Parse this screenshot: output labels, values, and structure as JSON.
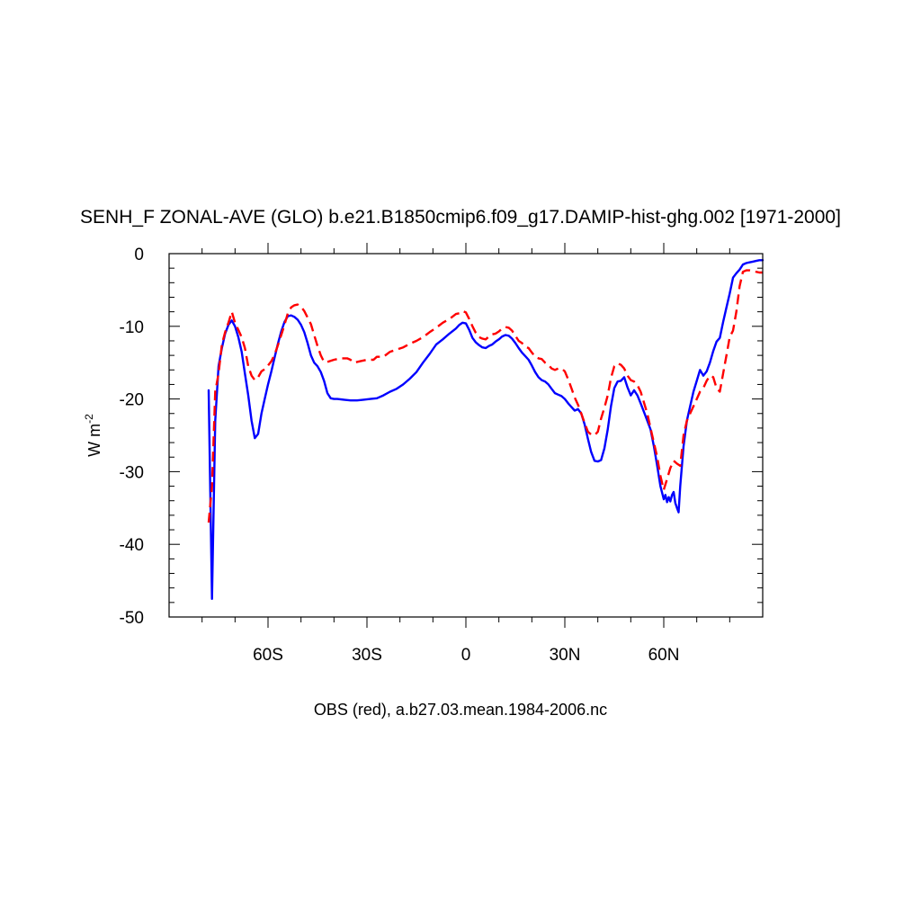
{
  "chart_data": {
    "type": "line",
    "title": "SENH_F ZONAL-AVE (GLO) b.e21.B1850cmip6.f09_g17.DAMIP-hist-ghg.002 [1971-2000]",
    "xlabel": "OBS (red), a.b27.03.mean.1984-2006.nc",
    "ylabel": "W m",
    "ylabel_sup": "-2",
    "xlim": [
      -90,
      90
    ],
    "ylim": [
      -50,
      0
    ],
    "x_ticks": [
      {
        "value": -60,
        "label": "60S"
      },
      {
        "value": -30,
        "label": "30S"
      },
      {
        "value": 0,
        "label": "0"
      },
      {
        "value": 30,
        "label": "30N"
      },
      {
        "value": 60,
        "label": "60N"
      }
    ],
    "y_ticks": [
      {
        "value": 0,
        "label": "0"
      },
      {
        "value": -10,
        "label": "-10"
      },
      {
        "value": -20,
        "label": "-20"
      },
      {
        "value": -30,
        "label": "-30"
      },
      {
        "value": -40,
        "label": "-40"
      },
      {
        "value": -50,
        "label": "-50"
      }
    ],
    "grid": false,
    "series": [
      {
        "color": "#0000ff",
        "dash": "solid",
        "points": [
          [
            -78,
            -18.8
          ],
          [
            -77,
            -47.5
          ],
          [
            -76,
            -23
          ],
          [
            -75,
            -15.5
          ],
          [
            -74,
            -13
          ],
          [
            -73,
            -11
          ],
          [
            -72,
            -9.8
          ],
          [
            -71,
            -9.2
          ],
          [
            -70,
            -10
          ],
          [
            -69,
            -11.5
          ],
          [
            -68,
            -13.5
          ],
          [
            -67,
            -16.5
          ],
          [
            -66,
            -19.5
          ],
          [
            -65,
            -23
          ],
          [
            -64,
            -25.4
          ],
          [
            -63,
            -24.8
          ],
          [
            -62,
            -22
          ],
          [
            -61,
            -20
          ],
          [
            -60,
            -18
          ],
          [
            -59,
            -16.2
          ],
          [
            -58,
            -14.3
          ],
          [
            -57,
            -12.4
          ],
          [
            -56,
            -10.7
          ],
          [
            -55,
            -9.4
          ],
          [
            -54,
            -8.6
          ],
          [
            -53,
            -8.5
          ],
          [
            -52,
            -8.7
          ],
          [
            -51,
            -9.1
          ],
          [
            -50,
            -9.8
          ],
          [
            -49,
            -10.8
          ],
          [
            -48,
            -12.3
          ],
          [
            -47,
            -14
          ],
          [
            -46,
            -15
          ],
          [
            -45,
            -15.5
          ],
          [
            -44,
            -16.3
          ],
          [
            -43,
            -17.5
          ],
          [
            -42,
            -19.2
          ],
          [
            -41,
            -19.9
          ],
          [
            -40,
            -20
          ],
          [
            -39,
            -20
          ],
          [
            -37,
            -20.1
          ],
          [
            -35,
            -20.2
          ],
          [
            -33,
            -20.2
          ],
          [
            -31,
            -20.1
          ],
          [
            -29,
            -20
          ],
          [
            -27,
            -19.9
          ],
          [
            -25,
            -19.5
          ],
          [
            -23,
            -19
          ],
          [
            -21,
            -18.6
          ],
          [
            -19,
            -18
          ],
          [
            -17,
            -17.2
          ],
          [
            -15,
            -16.3
          ],
          [
            -13,
            -15
          ],
          [
            -11,
            -13.8
          ],
          [
            -9,
            -12.5
          ],
          [
            -7,
            -11.8
          ],
          [
            -5,
            -11
          ],
          [
            -3,
            -10.3
          ],
          [
            -2,
            -9.8
          ],
          [
            -1,
            -9.5
          ],
          [
            0,
            -9.6
          ],
          [
            1,
            -10.5
          ],
          [
            2,
            -11.6
          ],
          [
            3,
            -12.2
          ],
          [
            4,
            -12.6
          ],
          [
            5,
            -12.9
          ],
          [
            6,
            -13
          ],
          [
            7,
            -12.7
          ],
          [
            8,
            -12.5
          ],
          [
            9,
            -12.1
          ],
          [
            10,
            -11.8
          ],
          [
            11,
            -11.4
          ],
          [
            12,
            -11.2
          ],
          [
            13,
            -11.3
          ],
          [
            14,
            -11.7
          ],
          [
            15,
            -12.3
          ],
          [
            16,
            -13
          ],
          [
            17,
            -13.6
          ],
          [
            18,
            -14.1
          ],
          [
            19,
            -14.6
          ],
          [
            20,
            -15.4
          ],
          [
            21,
            -16.3
          ],
          [
            22,
            -17
          ],
          [
            23,
            -17.4
          ],
          [
            24,
            -17.6
          ],
          [
            25,
            -18
          ],
          [
            26,
            -18.6
          ],
          [
            27,
            -19.2
          ],
          [
            28,
            -19.4
          ],
          [
            29,
            -19.6
          ],
          [
            30,
            -20
          ],
          [
            31,
            -20.6
          ],
          [
            32,
            -21.1
          ],
          [
            33,
            -21.6
          ],
          [
            34,
            -21.4
          ],
          [
            35,
            -22
          ],
          [
            36,
            -23.5
          ],
          [
            37,
            -25.5
          ],
          [
            38,
            -27.3
          ],
          [
            39,
            -28.5
          ],
          [
            40,
            -28.6
          ],
          [
            41,
            -28.4
          ],
          [
            42,
            -26.8
          ],
          [
            43,
            -24.2
          ],
          [
            44,
            -21
          ],
          [
            45,
            -18.5
          ],
          [
            46,
            -17.6
          ],
          [
            47,
            -17.5
          ],
          [
            48,
            -17
          ],
          [
            49,
            -18.4
          ],
          [
            50,
            -19.5
          ],
          [
            51,
            -18.8
          ],
          [
            52,
            -19.5
          ],
          [
            53,
            -20.6
          ],
          [
            54,
            -21.8
          ],
          [
            55,
            -23
          ],
          [
            56,
            -24.2
          ],
          [
            57,
            -26.5
          ],
          [
            58,
            -29.2
          ],
          [
            59,
            -32
          ],
          [
            60,
            -33.8
          ],
          [
            60.5,
            -33.2
          ],
          [
            61,
            -34.2
          ],
          [
            61.5,
            -33.5
          ],
          [
            62,
            -34.1
          ],
          [
            62.5,
            -33.2
          ],
          [
            63,
            -32.8
          ],
          [
            63.5,
            -34.3
          ],
          [
            64,
            -35
          ],
          [
            64.5,
            -35.6
          ],
          [
            65,
            -32
          ],
          [
            66,
            -26.5
          ],
          [
            67,
            -23
          ],
          [
            68,
            -21
          ],
          [
            69,
            -19
          ],
          [
            70,
            -17.5
          ],
          [
            71,
            -16
          ],
          [
            72,
            -16.8
          ],
          [
            73,
            -16.2
          ],
          [
            74,
            -15
          ],
          [
            75,
            -13.4
          ],
          [
            76,
            -12.1
          ],
          [
            77,
            -11.6
          ],
          [
            78,
            -9.4
          ],
          [
            79,
            -7.4
          ],
          [
            80,
            -5.5
          ],
          [
            81,
            -3.3
          ],
          [
            82,
            -2.7
          ],
          [
            83,
            -2.2
          ],
          [
            84,
            -1.5
          ],
          [
            85,
            -1.3
          ],
          [
            86,
            -1.2
          ],
          [
            87,
            -1.1
          ],
          [
            88,
            -1
          ],
          [
            89,
            -0.9
          ],
          [
            90,
            -0.9
          ]
        ]
      },
      {
        "color": "#ff0000",
        "dash": "dashed",
        "points": [
          [
            -78,
            -37
          ],
          [
            -77,
            -32
          ],
          [
            -76,
            -19
          ],
          [
            -75,
            -16.5
          ],
          [
            -74,
            -12.5
          ],
          [
            -73,
            -10.8
          ],
          [
            -72,
            -9.5
          ],
          [
            -71,
            -8
          ],
          [
            -70,
            -9.5
          ],
          [
            -69,
            -10.5
          ],
          [
            -68,
            -11.5
          ],
          [
            -67,
            -13
          ],
          [
            -66,
            -15.5
          ],
          [
            -65,
            -16.8
          ],
          [
            -64,
            -17.4
          ],
          [
            -63,
            -17
          ],
          [
            -62,
            -16.2
          ],
          [
            -61,
            -15.9
          ],
          [
            -60,
            -15.4
          ],
          [
            -59,
            -14.8
          ],
          [
            -58,
            -13.9
          ],
          [
            -57,
            -12.6
          ],
          [
            -56,
            -11.2
          ],
          [
            -55,
            -9.8
          ],
          [
            -54,
            -8.2
          ],
          [
            -53,
            -7.4
          ],
          [
            -52,
            -7.1
          ],
          [
            -51,
            -7
          ],
          [
            -50,
            -7.3
          ],
          [
            -49,
            -7.9
          ],
          [
            -48,
            -8.8
          ],
          [
            -47,
            -9.7
          ],
          [
            -46,
            -11.2
          ],
          [
            -45,
            -12.7
          ],
          [
            -44,
            -14
          ],
          [
            -43,
            -14.9
          ],
          [
            -42,
            -14.9
          ],
          [
            -40,
            -14.6
          ],
          [
            -38,
            -14.4
          ],
          [
            -36,
            -14.4
          ],
          [
            -35,
            -14.6
          ],
          [
            -34,
            -15
          ],
          [
            -32,
            -14.8
          ],
          [
            -30,
            -14.6
          ],
          [
            -28,
            -14.6
          ],
          [
            -27,
            -14.2
          ],
          [
            -25,
            -14.2
          ],
          [
            -23,
            -13.5
          ],
          [
            -21,
            -13.2
          ],
          [
            -19,
            -12.9
          ],
          [
            -17,
            -12.4
          ],
          [
            -15,
            -12
          ],
          [
            -13,
            -11.5
          ],
          [
            -11,
            -10.8
          ],
          [
            -9,
            -10.2
          ],
          [
            -7,
            -9.5
          ],
          [
            -5,
            -9
          ],
          [
            -3,
            -8.3
          ],
          [
            -2,
            -8.2
          ],
          [
            -1,
            -7.9
          ],
          [
            0,
            -8.1
          ],
          [
            1,
            -9
          ],
          [
            2,
            -10
          ],
          [
            3,
            -10.9
          ],
          [
            4,
            -11.5
          ],
          [
            5,
            -11.7
          ],
          [
            6,
            -11.8
          ],
          [
            7,
            -11.4
          ],
          [
            8,
            -11.1
          ],
          [
            9,
            -11
          ],
          [
            10,
            -10.7
          ],
          [
            11,
            -10.3
          ],
          [
            12,
            -10.1
          ],
          [
            13,
            -10.2
          ],
          [
            14,
            -10.6
          ],
          [
            15,
            -11.3
          ],
          [
            16,
            -12
          ],
          [
            17,
            -12.3
          ],
          [
            18,
            -12.8
          ],
          [
            19,
            -13
          ],
          [
            20,
            -13.6
          ],
          [
            21,
            -14.2
          ],
          [
            22,
            -14.4
          ],
          [
            23,
            -14.5
          ],
          [
            24,
            -15
          ],
          [
            25,
            -15.3
          ],
          [
            26,
            -15.8
          ],
          [
            27,
            -16
          ],
          [
            28,
            -15.8
          ],
          [
            29,
            -15.8
          ],
          [
            30,
            -16.2
          ],
          [
            31,
            -17.3
          ],
          [
            32,
            -18.5
          ],
          [
            33,
            -19.8
          ],
          [
            34,
            -20.8
          ],
          [
            35,
            -22
          ],
          [
            36,
            -23.3
          ],
          [
            37,
            -24.5
          ],
          [
            38,
            -24.9
          ],
          [
            39,
            -25
          ],
          [
            40,
            -24.5
          ],
          [
            41,
            -22.7
          ],
          [
            42,
            -21.2
          ],
          [
            43,
            -19.5
          ],
          [
            44,
            -17.1
          ],
          [
            45,
            -15.5
          ],
          [
            46,
            -15.1
          ],
          [
            47,
            -15.3
          ],
          [
            48,
            -15.8
          ],
          [
            49,
            -16.8
          ],
          [
            50,
            -17.4
          ],
          [
            51,
            -17.6
          ],
          [
            52,
            -18.1
          ],
          [
            53,
            -19
          ],
          [
            54,
            -20.5
          ],
          [
            55,
            -22
          ],
          [
            56,
            -24
          ],
          [
            57,
            -26
          ],
          [
            58,
            -28
          ],
          [
            59,
            -30.6
          ],
          [
            60,
            -32.5
          ],
          [
            61,
            -31
          ],
          [
            62,
            -29.5
          ],
          [
            63,
            -28.5
          ],
          [
            64,
            -28.9
          ],
          [
            65,
            -29.2
          ],
          [
            66,
            -25
          ],
          [
            67,
            -23
          ],
          [
            68,
            -22
          ],
          [
            69,
            -21
          ],
          [
            70,
            -20
          ],
          [
            71,
            -19
          ],
          [
            72,
            -18.5
          ],
          [
            73,
            -17.5
          ],
          [
            74,
            -16.8
          ],
          [
            75,
            -17
          ],
          [
            76,
            -18.5
          ],
          [
            77,
            -19
          ],
          [
            78,
            -16.5
          ],
          [
            79,
            -14
          ],
          [
            80,
            -11.5
          ],
          [
            81,
            -10.6
          ],
          [
            82,
            -8
          ],
          [
            83,
            -4.5
          ],
          [
            84,
            -2.5
          ],
          [
            85,
            -2.3
          ],
          [
            86,
            -2.3
          ],
          [
            87,
            -2.4
          ],
          [
            88,
            -2.5
          ],
          [
            89,
            -2.6
          ],
          [
            90,
            -2.6
          ]
        ]
      }
    ]
  }
}
